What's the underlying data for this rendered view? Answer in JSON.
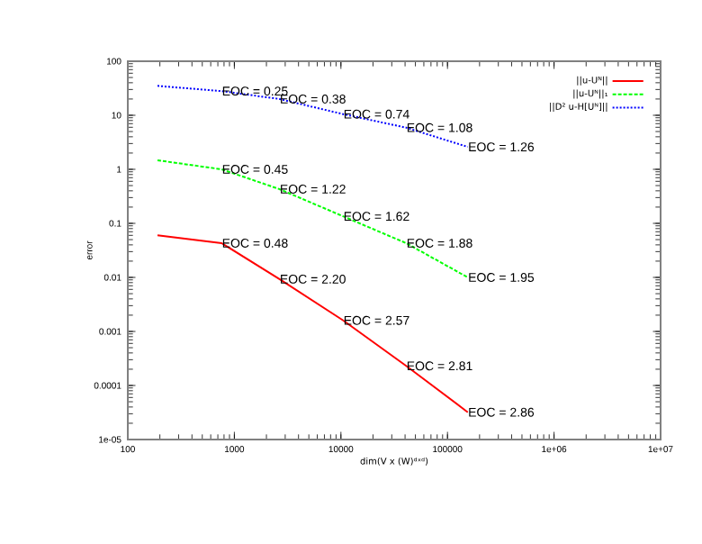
{
  "chart_data": {
    "type": "line",
    "xlabel": "dim(V x (W)ᵈˣᵈ)",
    "ylabel": "error",
    "x": [
      190,
      760,
      2650,
      10500,
      41000,
      155000
    ],
    "series": [
      {
        "name": "||u-Uᴺ||",
        "color": "#ff0000",
        "line_style": "solid",
        "values": [
          0.06,
          0.043,
          0.0093,
          0.0016,
          0.00023,
          3.2e-05
        ]
      },
      {
        "name": "||u-Uᴺ||₁",
        "color": "#00ff00",
        "line_style": "dashed",
        "values": [
          1.47,
          1.0,
          0.43,
          0.135,
          0.043,
          0.01
        ]
      },
      {
        "name": "||D² u-H[Uᴺ]||",
        "color": "#0000ff",
        "line_style": "dotted",
        "values": [
          35,
          28,
          20,
          10.5,
          5.9,
          2.6
        ]
      }
    ],
    "annotations": [
      {
        "text": "EOC = 0.48",
        "x": 760,
        "y": 0.043
      },
      {
        "text": "EOC = 2.20",
        "x": 2650,
        "y": 0.0093
      },
      {
        "text": "EOC = 2.57",
        "x": 10500,
        "y": 0.0016
      },
      {
        "text": "EOC = 2.81",
        "x": 41000,
        "y": 0.00023
      },
      {
        "text": "EOC = 2.86",
        "x": 155000,
        "y": 3.2e-05
      },
      {
        "text": "EOC = 0.45",
        "x": 760,
        "y": 1.0
      },
      {
        "text": "EOC = 1.22",
        "x": 2650,
        "y": 0.43
      },
      {
        "text": "EOC = 1.62",
        "x": 10500,
        "y": 0.135
      },
      {
        "text": "EOC = 1.88",
        "x": 41000,
        "y": 0.043
      },
      {
        "text": "EOC = 1.95",
        "x": 155000,
        "y": 0.01
      },
      {
        "text": "EOC = 0.25",
        "x": 760,
        "y": 28
      },
      {
        "text": "EOC = 0.38",
        "x": 2650,
        "y": 20
      },
      {
        "text": "EOC = 0.74",
        "x": 10500,
        "y": 10.5
      },
      {
        "text": "EOC = 1.08",
        "x": 41000,
        "y": 5.9
      },
      {
        "text": "EOC = 1.26",
        "x": 155000,
        "y": 2.6
      }
    ],
    "log": "xy",
    "grid": false,
    "legend": "top right",
    "xlim": [
      100,
      10000000
    ],
    "xticks": [
      100,
      1000,
      10000,
      100000,
      {
        "value": 1000000,
        "label": "1e+06"
      },
      {
        "value": 10000000,
        "label": "1e+07"
      }
    ],
    "ylim": [
      1e-05,
      100
    ],
    "yticks": [
      {
        "value": 1e-05,
        "label": "1e-05"
      },
      0.0001,
      0.001,
      0.01,
      0.1,
      1,
      10,
      100
    ]
  }
}
